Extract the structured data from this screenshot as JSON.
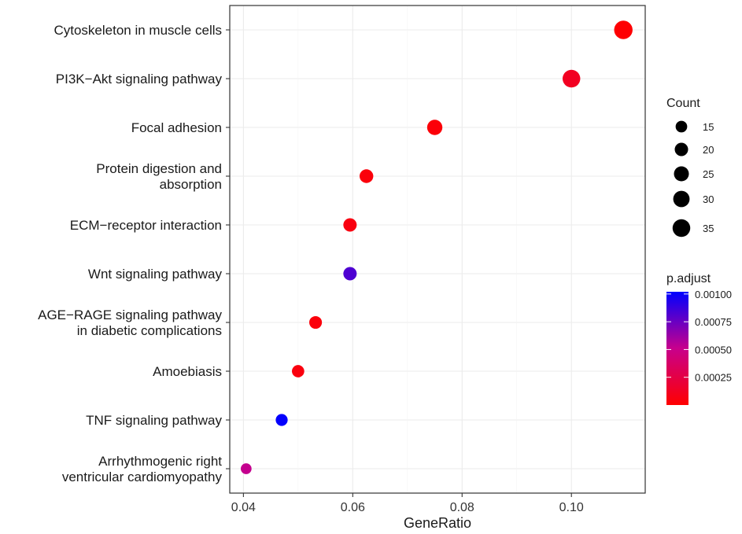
{
  "chart_data": {
    "type": "scatter",
    "xlabel": "GeneRatio",
    "xlim": [
      0.0375,
      0.1135
    ],
    "xticks": [
      0.04,
      0.06,
      0.08,
      0.1
    ],
    "xtick_labels": [
      "0.04",
      "0.06",
      "0.08",
      "0.10"
    ],
    "grid": true,
    "categories": [
      [
        "Cytoskeleton in muscle cells"
      ],
      [
        "PI3K−Akt signaling pathway"
      ],
      [
        "Focal adhesion"
      ],
      [
        "Protein digestion and",
        "absorption"
      ],
      [
        "ECM−receptor interaction"
      ],
      [
        "Wnt signaling pathway"
      ],
      [
        "AGE−RAGE signaling pathway",
        "in diabetic complications"
      ],
      [
        "Amoebiasis"
      ],
      [
        "TNF signaling pathway"
      ],
      [
        "Arrhythmogenic right",
        "ventricular cardiomyopathy"
      ]
    ],
    "points": [
      {
        "x": 0.1095,
        "count": 38,
        "p_adjust": 1e-05
      },
      {
        "x": 0.1,
        "count": 35,
        "p_adjust": 0.00012
      },
      {
        "x": 0.075,
        "count": 26,
        "p_adjust": 3e-05
      },
      {
        "x": 0.0625,
        "count": 21,
        "p_adjust": 4e-05
      },
      {
        "x": 0.0595,
        "count": 20,
        "p_adjust": 6e-05
      },
      {
        "x": 0.0595,
        "count": 20,
        "p_adjust": 0.00082
      },
      {
        "x": 0.0532,
        "count": 18,
        "p_adjust": 4e-05
      },
      {
        "x": 0.05,
        "count": 17,
        "p_adjust": 5e-05
      },
      {
        "x": 0.047,
        "count": 16,
        "p_adjust": 0.00101
      },
      {
        "x": 0.0405,
        "count": 13,
        "p_adjust": 0.00052
      }
    ],
    "size_legend": {
      "title": "Count",
      "values": [
        15,
        20,
        25,
        30,
        35
      ],
      "labels": [
        "15",
        "20",
        "25",
        "30",
        "35"
      ]
    },
    "color_legend": {
      "title": "p.adjust",
      "range": [
        0.0,
        0.00102
      ],
      "ticks": [
        0.00025,
        0.0005,
        0.00075,
        0.001
      ],
      "labels": [
        "0.00025",
        "0.00050",
        "0.00075",
        "0.00100"
      ],
      "low_color": "#ff0000",
      "high_color": "#0000ff"
    }
  }
}
